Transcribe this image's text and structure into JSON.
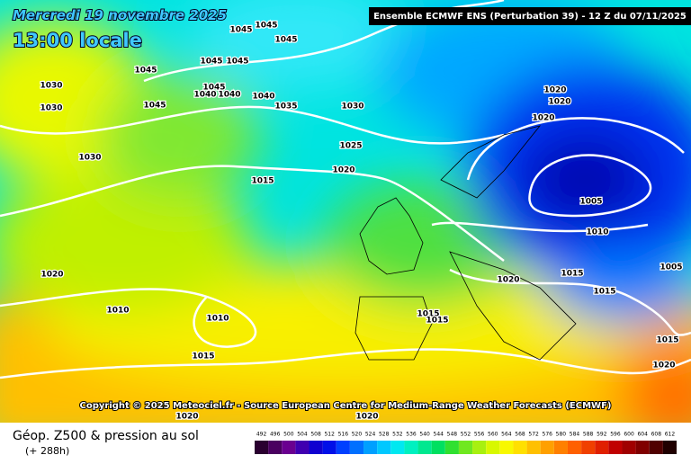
{
  "header": {
    "date": "Mercredi 19 novembre 2025",
    "time": "13:00 locale",
    "run": "Ensemble ECMWF ENS  (Perturbation 39)  -  12 Z du 07/11/2025"
  },
  "copyright": "Copyright © 2025 Meteociel.fr - Source European Centre for Medium-Range Weather Forecasts (ECMWF)",
  "footer": {
    "title": "Géop. Z500 & pression au sol",
    "lead": "(+ 288h)"
  },
  "legend": {
    "labels": [
      492,
      496,
      500,
      504,
      508,
      512,
      516,
      520,
      524,
      528,
      532,
      536,
      540,
      544,
      548,
      552,
      556,
      560,
      564,
      568,
      572,
      576,
      580,
      584,
      588,
      592,
      596,
      600,
      604,
      608,
      612
    ],
    "colors": [
      "#2a0030",
      "#4a0060",
      "#6a0090",
      "#4000b0",
      "#1000d0",
      "#0010e8",
      "#0040ff",
      "#0070ff",
      "#00a0ff",
      "#00c8ff",
      "#00e8f0",
      "#00f0c0",
      "#00e890",
      "#00e060",
      "#30e030",
      "#70e820",
      "#a8f010",
      "#d8f800",
      "#f8f800",
      "#ffe000",
      "#ffc000",
      "#ffa000",
      "#ff8000",
      "#ff6000",
      "#f04000",
      "#e02000",
      "#c00000",
      "#a00000",
      "#800000",
      "#500000",
      "#200000"
    ]
  },
  "isobar_labels": [
    "1045",
    "1045",
    "1045",
    "1045",
    "1045",
    "1045",
    "1045",
    "1040",
    "1040",
    "1040",
    "1035",
    "1030",
    "1045",
    "1030",
    "1030",
    "1030",
    "1025",
    "1020",
    "1015",
    "1020",
    "1020",
    "1020",
    "1005",
    "1010",
    "1005",
    "1015",
    "1015",
    "1020",
    "1015",
    "1015",
    "1020",
    "1010",
    "1010",
    "1015",
    "1015",
    "1020",
    "1020",
    "1020"
  ]
}
